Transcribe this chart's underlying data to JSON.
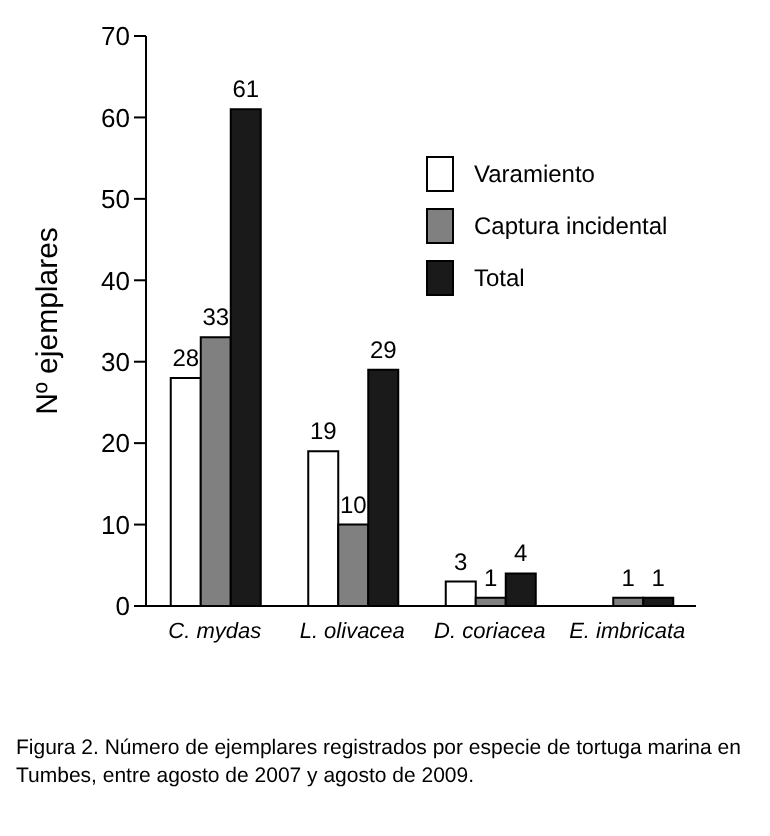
{
  "chart_data": {
    "type": "bar",
    "ylabel": "Nº ejemplares",
    "categories": [
      "C. mydas",
      "L. olivacea",
      "D. coriacea",
      "E. imbricata"
    ],
    "series": [
      {
        "name": "Varamiento",
        "color": "#ffffff",
        "values": [
          28,
          19,
          3,
          0
        ],
        "value_labels": [
          "28",
          "19",
          "3",
          null
        ]
      },
      {
        "name": "Captura incidental",
        "color": "#808080",
        "values": [
          33,
          10,
          1,
          1
        ],
        "value_labels": [
          "33",
          "10",
          "1",
          "1"
        ]
      },
      {
        "name": "Total",
        "color": "#1a1a1a",
        "values": [
          61,
          29,
          4,
          1
        ],
        "value_labels": [
          "61",
          "29",
          "4",
          "1"
        ]
      }
    ],
    "ylim": [
      0,
      70
    ],
    "yticks": [
      0,
      10,
      20,
      30,
      40,
      50,
      60,
      70
    ],
    "grid": false,
    "legend": "top right",
    "annotations": [
      "Figura 2. Número de ejemplares registrados por especie de tortuga marina en Tumbes, entre agosto de 2007 y agosto de 2009."
    ]
  }
}
